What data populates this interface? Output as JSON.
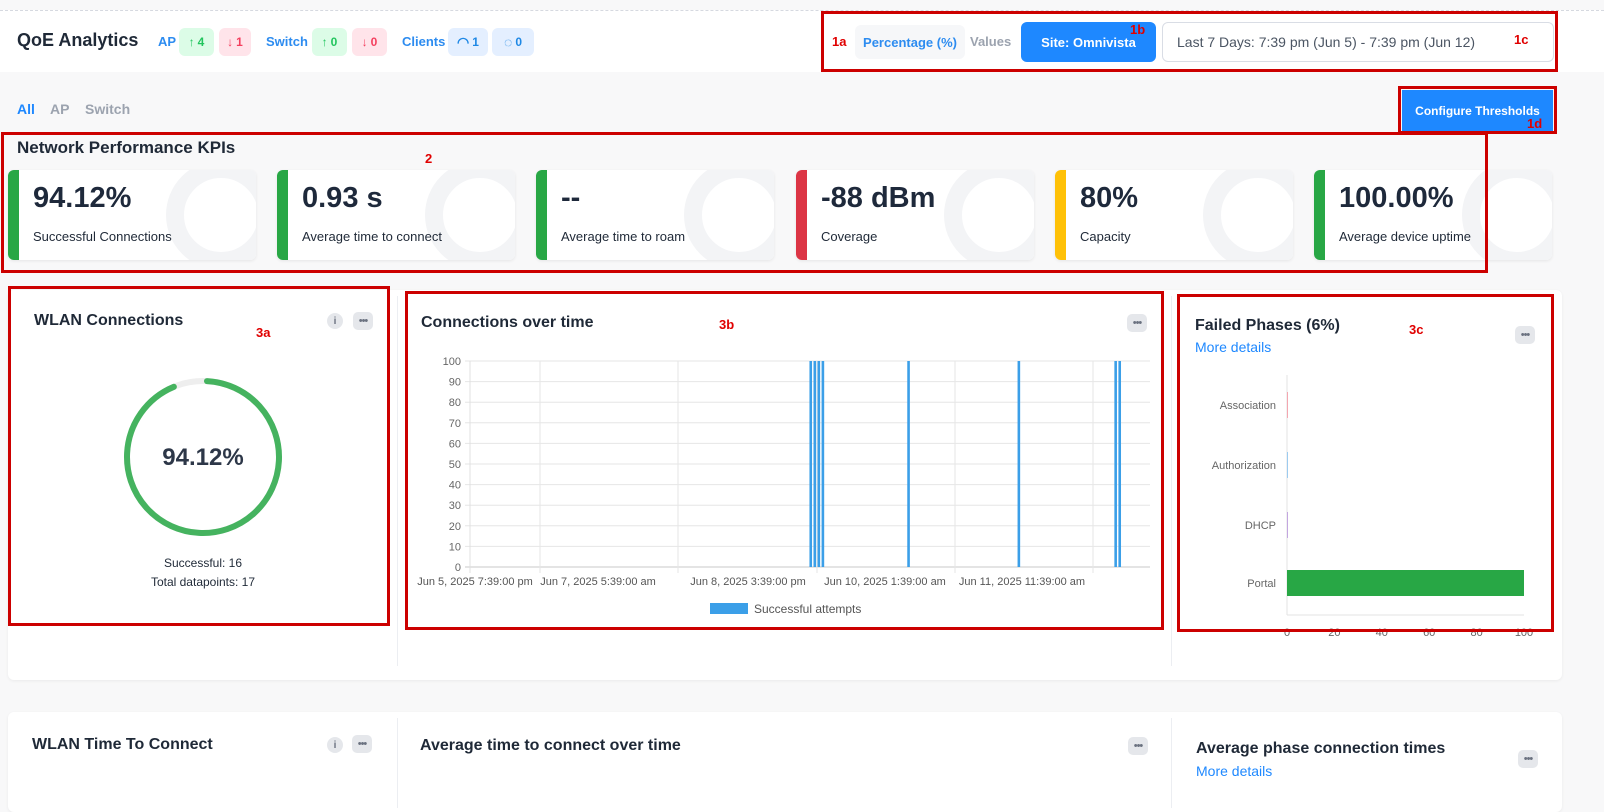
{
  "header": {
    "title": "QoE Analytics",
    "ap": {
      "label": "AP",
      "up": "4",
      "down": "1"
    },
    "switch": {
      "label": "Switch",
      "up": "0",
      "down": "0"
    },
    "clients": {
      "label": "Clients",
      "wifi": "1",
      "wired": "0"
    },
    "mode": {
      "percentage": "Percentage (%)",
      "values": "Values",
      "selected": "Percentage (%)"
    },
    "site": "Site: Omnivista",
    "date_range": "Last 7 Days: 7:39 pm (Jun 5) - 7:39 pm (Jun 12)"
  },
  "filters": {
    "tabs": [
      "All",
      "AP",
      "Switch"
    ],
    "active": "All"
  },
  "configure_thresholds": "Configure Thresholds",
  "kpi_section": {
    "title": "Network Performance KPIs",
    "cards": [
      {
        "value": "94.12%",
        "label": "Successful Connections",
        "color": "#28a745"
      },
      {
        "value": "0.93 s",
        "label": "Average time to connect",
        "color": "#28a745"
      },
      {
        "value": "--",
        "label": "Average time to roam",
        "color": "#28a745"
      },
      {
        "value": "-88 dBm",
        "label": "Coverage",
        "color": "#dc3545"
      },
      {
        "value": "80%",
        "label": "Capacity",
        "color": "#ffc107"
      },
      {
        "value": "100.00%",
        "label": "Average device uptime",
        "color": "#28a745"
      }
    ]
  },
  "wlan_connections": {
    "title": "WLAN Connections",
    "percent": 94.12,
    "percent_label": "94.12%",
    "successful": "Successful: 16",
    "total": "Total datapoints: 17",
    "color": "#45b35f"
  },
  "connections_over_time": {
    "title": "Connections over time"
  },
  "failed_phases": {
    "title": "Failed Phases (6%)",
    "more": "More details"
  },
  "bottom": {
    "wlan_ttc": "WLAN Time To Connect",
    "avg_ttc": "Average time to connect over time",
    "phase_times": "Average phase connection times",
    "more": "More details"
  },
  "annotations": {
    "a1a": "1a",
    "a1b": "1b",
    "a1c": "1c",
    "a1d": "1d",
    "a2": "2",
    "a3a": "3a",
    "a3b": "3b",
    "a3c": "3c"
  },
  "chart_data": [
    {
      "type": "bar",
      "title": "Connections over time",
      "ylim": [
        0,
        100
      ],
      "yticks": [
        0,
        10,
        20,
        30,
        40,
        50,
        60,
        70,
        80,
        90,
        100
      ],
      "xlim": [
        "2025-06-05T19:39",
        "2025-06-12T19:39"
      ],
      "xticks": [
        "Jun 5, 2025 7:39:00 pm",
        "Jun 7, 2025 5:39:00 am",
        "Jun 8, 2025 3:39:00 pm",
        "Jun 10, 2025 1:39:00 am",
        "Jun 11, 2025 11:39:00 am"
      ],
      "legend": "bottom",
      "grid": true,
      "series": [
        {
          "name": "Successful attempts",
          "color": "#3b9fe8",
          "x": [
            "2025-06-09T07:50",
            "2025-06-09T08:50",
            "2025-06-09T09:50",
            "2025-06-09T10:50",
            "2025-06-10T08:00",
            "2025-06-11T11:15",
            "2025-06-12T11:10",
            "2025-06-12T12:10"
          ],
          "values": [
            100,
            100,
            100,
            100,
            100,
            100,
            100,
            100
          ]
        }
      ]
    },
    {
      "type": "bar",
      "orientation": "horizontal",
      "title": "Failed Phases (6%)",
      "xlim": [
        0,
        100
      ],
      "xticks": [
        0,
        20,
        40,
        60,
        80,
        100
      ],
      "categories": [
        "Association",
        "Authorization",
        "DHCP",
        "Portal"
      ],
      "values": [
        0,
        0,
        0,
        100
      ],
      "colors": [
        "#f4a6b0",
        "#9ccbf0",
        "#c3a6e0",
        "#28a745"
      ]
    }
  ]
}
